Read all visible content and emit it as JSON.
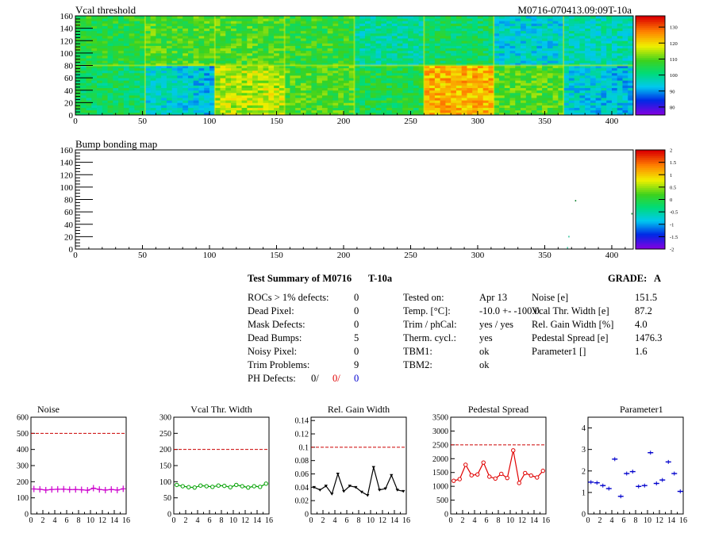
{
  "maps": [
    {
      "title": "Vcal threshold",
      "id_label": "M0716-070413.09:09T-10a",
      "x_ticks": [
        "0",
        "50",
        "100",
        "150",
        "200",
        "250",
        "300",
        "350",
        "400"
      ],
      "y_ticks": [
        "0",
        "20",
        "40",
        "60",
        "80",
        "100",
        "120",
        "140",
        "160"
      ],
      "xlim": [
        0,
        416
      ],
      "ylim": [
        0,
        160
      ],
      "palette_ticks": [
        "80",
        "90",
        "100",
        "110",
        "120",
        "130"
      ],
      "palette_range": [
        75,
        137
      ]
    },
    {
      "title": "Bump bonding map",
      "x_ticks": [
        "0",
        "50",
        "100",
        "150",
        "200",
        "250",
        "300",
        "350",
        "400"
      ],
      "y_ticks": [
        "0",
        "20",
        "40",
        "60",
        "80",
        "100",
        "120",
        "140",
        "160"
      ],
      "xlim": [
        0,
        416
      ],
      "ylim": [
        0,
        160
      ],
      "palette_ticks": [
        "-2",
        "-1.5",
        "-1",
        "-0.5",
        "0",
        "0.5",
        "1",
        "1.5",
        "2"
      ],
      "palette_range": [
        -2,
        2
      ]
    }
  ],
  "summary": {
    "title": "Test Summary of M0716",
    "temp_label": "T-10a",
    "grade_label": "GRADE:",
    "grade": "A",
    "left": [
      {
        "label": "ROCs > 1% defects:",
        "value": "0"
      },
      {
        "label": "Dead Pixel:",
        "value": "0"
      },
      {
        "label": "Mask Defects:",
        "value": "0"
      },
      {
        "label": "Dead Bumps:",
        "value": "5"
      },
      {
        "label": "Noisy Pixel:",
        "value": "0"
      },
      {
        "label": "Trim Problems:",
        "value": "9"
      }
    ],
    "ph_label": "PH Defects:",
    "ph_values": [
      "0/",
      "0/",
      "0"
    ],
    "middle": [
      {
        "label": "Tested on:",
        "value": "Apr 13"
      },
      {
        "label": "Temp. [°C]:",
        "value": "-10.0 +- -100.0"
      },
      {
        "label": "Trim / phCal:",
        "value": "yes / yes"
      },
      {
        "label": "Therm. cycl.:",
        "value": "yes"
      },
      {
        "label": "TBM1:",
        "value": "ok"
      },
      {
        "label": "TBM2:",
        "value": "ok"
      }
    ],
    "right": [
      {
        "label": "Noise [e]",
        "value": "151.5"
      },
      {
        "label": "Vcal Thr. Width [e]",
        "value": "87.2"
      },
      {
        "label": "Rel. Gain Width [%]",
        "value": "4.0"
      },
      {
        "label": "Pedestal Spread [e]",
        "value": "1476.3"
      },
      {
        "label": "Parameter1 []",
        "value": "1.6"
      }
    ]
  },
  "chart_data": [
    {
      "type": "line",
      "title": "Noise",
      "color": "#cc00cc",
      "marker": "plus",
      "x": [
        0,
        1,
        2,
        3,
        4,
        5,
        6,
        7,
        8,
        9,
        10,
        11,
        12,
        13,
        14,
        15
      ],
      "values": [
        155,
        153,
        148,
        152,
        153,
        154,
        151,
        152,
        150,
        147,
        160,
        152,
        148,
        152,
        148,
        156
      ],
      "xlim": [
        0,
        16
      ],
      "ylim": [
        0,
        600
      ],
      "y_ticks": [
        "0",
        "100",
        "200",
        "300",
        "400",
        "500",
        "600"
      ],
      "x_ticks": [
        "0",
        "2",
        "4",
        "6",
        "8",
        "10",
        "12",
        "14",
        "16"
      ],
      "limit": 500
    },
    {
      "type": "line",
      "title": "Vcal Thr. Width",
      "color": "#00a000",
      "marker": "circle",
      "x": [
        0,
        1,
        2,
        3,
        4,
        5,
        6,
        7,
        8,
        9,
        10,
        11,
        12,
        13,
        14,
        15
      ],
      "values": [
        90,
        86,
        83,
        82,
        88,
        86,
        84,
        88,
        87,
        83,
        90,
        86,
        82,
        86,
        84,
        94
      ],
      "xlim": [
        0,
        16
      ],
      "ylim": [
        0,
        300
      ],
      "y_ticks": [
        "0",
        "50",
        "100",
        "150",
        "200",
        "250",
        "300"
      ],
      "x_ticks": [
        "0",
        "2",
        "4",
        "6",
        "8",
        "10",
        "12",
        "14",
        "16"
      ],
      "limit": 200
    },
    {
      "type": "line",
      "title": "Rel. Gain Width",
      "color": "#000000",
      "marker": "triangle",
      "x": [
        0,
        1,
        2,
        3,
        4,
        5,
        6,
        7,
        8,
        9,
        10,
        11,
        12,
        13,
        14,
        15
      ],
      "values": [
        0.04,
        0.036,
        0.042,
        0.03,
        0.06,
        0.034,
        0.042,
        0.04,
        0.033,
        0.028,
        0.07,
        0.036,
        0.038,
        0.058,
        0.036,
        0.034
      ],
      "xlim": [
        0,
        16
      ],
      "ylim": [
        0,
        0.145
      ],
      "y_ticks": [
        "0",
        "0.02",
        "0.04",
        "0.06",
        "0.08",
        "0.1",
        "0.12",
        "0.14"
      ],
      "x_ticks": [
        "0",
        "2",
        "4",
        "6",
        "8",
        "10",
        "12",
        "14",
        "16"
      ],
      "limit": 0.1
    },
    {
      "type": "line",
      "title": "Pedestal Spread",
      "color": "#e00000",
      "marker": "circle",
      "x": [
        0,
        1,
        2,
        3,
        4,
        5,
        6,
        7,
        8,
        9,
        10,
        11,
        12,
        13,
        14,
        15
      ],
      "values": [
        1200,
        1260,
        1780,
        1400,
        1430,
        1860,
        1350,
        1280,
        1450,
        1300,
        2300,
        1120,
        1480,
        1390,
        1320,
        1560
      ],
      "xlim": [
        0,
        16
      ],
      "ylim": [
        0,
        3500
      ],
      "y_ticks": [
        "0",
        "500",
        "1000",
        "1500",
        "2000",
        "2500",
        "3000",
        "3500"
      ],
      "x_ticks": [
        "0",
        "2",
        "4",
        "6",
        "8",
        "10",
        "12",
        "14",
        "16"
      ],
      "limit": 2500
    },
    {
      "type": "scatter",
      "title": "Parameter1",
      "color": "#0000cc",
      "marker": "cross-errbar",
      "x": [
        0,
        1,
        2,
        3,
        4,
        5,
        6,
        7,
        8,
        9,
        10,
        11,
        12,
        13,
        14,
        15
      ],
      "values": [
        1.48,
        1.45,
        1.32,
        1.18,
        2.55,
        0.82,
        1.88,
        1.97,
        1.28,
        1.32,
        2.85,
        1.42,
        1.58,
        2.42,
        1.88,
        1.05
      ],
      "xlim": [
        0,
        16
      ],
      "ylim": [
        0,
        4.5
      ],
      "y_ticks": [
        "0",
        "1",
        "2",
        "3",
        "4"
      ],
      "x_ticks": [
        "0",
        "2",
        "4",
        "6",
        "8",
        "10",
        "12",
        "14",
        "16"
      ]
    }
  ]
}
